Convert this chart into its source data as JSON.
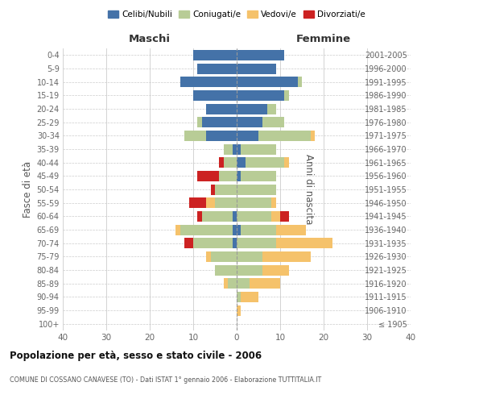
{
  "age_groups": [
    "100+",
    "95-99",
    "90-94",
    "85-89",
    "80-84",
    "75-79",
    "70-74",
    "65-69",
    "60-64",
    "55-59",
    "50-54",
    "45-49",
    "40-44",
    "35-39",
    "30-34",
    "25-29",
    "20-24",
    "15-19",
    "10-14",
    "5-9",
    "0-4"
  ],
  "birth_years": [
    "≤ 1905",
    "1906-1910",
    "1911-1915",
    "1916-1920",
    "1921-1925",
    "1926-1930",
    "1931-1935",
    "1936-1940",
    "1941-1945",
    "1946-1950",
    "1951-1955",
    "1956-1960",
    "1961-1965",
    "1966-1970",
    "1971-1975",
    "1976-1980",
    "1981-1985",
    "1986-1990",
    "1991-1995",
    "1996-2000",
    "2001-2005"
  ],
  "males": {
    "celibi": [
      0,
      0,
      0,
      0,
      0,
      0,
      1,
      1,
      1,
      0,
      0,
      0,
      0,
      1,
      7,
      8,
      7,
      10,
      13,
      9,
      10
    ],
    "coniugati": [
      0,
      0,
      0,
      2,
      5,
      6,
      9,
      12,
      7,
      5,
      5,
      4,
      3,
      2,
      5,
      1,
      0,
      0,
      0,
      0,
      0
    ],
    "vedovi": [
      0,
      0,
      0,
      1,
      0,
      1,
      0,
      1,
      0,
      2,
      0,
      0,
      0,
      0,
      0,
      0,
      0,
      0,
      0,
      0,
      0
    ],
    "divorziati": [
      0,
      0,
      0,
      0,
      0,
      0,
      2,
      0,
      1,
      4,
      1,
      5,
      1,
      0,
      0,
      0,
      0,
      0,
      0,
      0,
      0
    ]
  },
  "females": {
    "nubili": [
      0,
      0,
      0,
      0,
      0,
      0,
      0,
      1,
      0,
      0,
      0,
      1,
      2,
      1,
      5,
      6,
      7,
      11,
      14,
      9,
      11
    ],
    "coniugate": [
      0,
      0,
      1,
      3,
      6,
      6,
      9,
      8,
      8,
      8,
      9,
      8,
      9,
      8,
      12,
      5,
      2,
      1,
      1,
      0,
      0
    ],
    "vedove": [
      0,
      1,
      4,
      7,
      6,
      11,
      13,
      7,
      2,
      1,
      0,
      0,
      1,
      0,
      1,
      0,
      0,
      0,
      0,
      0,
      0
    ],
    "divorziate": [
      0,
      0,
      0,
      0,
      0,
      0,
      0,
      0,
      2,
      0,
      0,
      0,
      0,
      0,
      0,
      0,
      0,
      0,
      0,
      0,
      0
    ]
  },
  "colors": {
    "celibi": "#4472a8",
    "coniugati": "#b8cc96",
    "vedovi": "#f5c26b",
    "divorziati": "#cc2222"
  },
  "xlim": 40,
  "title": "Popolazione per età, sesso e stato civile - 2006",
  "subtitle": "COMUNE DI COSSANO CANAVESE (TO) - Dati ISTAT 1° gennaio 2006 - Elaborazione TUTTITALIA.IT",
  "ylabel_left": "Fasce di età",
  "ylabel_right": "Anni di nascita",
  "xlabel_left": "Maschi",
  "xlabel_right": "Femmine"
}
